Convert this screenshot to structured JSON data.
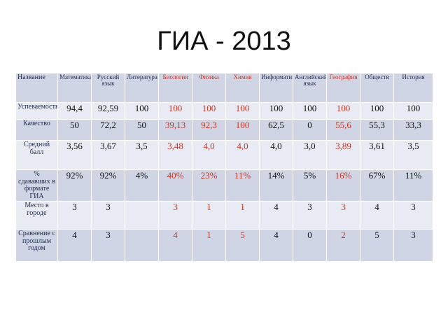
{
  "slide": {
    "title": "ГИА - 2013"
  },
  "table": {
    "corner_label": "Название",
    "subjects": [
      {
        "name": "Математика",
        "highlight": false
      },
      {
        "name": "Русский язык",
        "highlight": false
      },
      {
        "name": "Литература",
        "highlight": false
      },
      {
        "name": "Биология",
        "highlight": true
      },
      {
        "name": "Физика",
        "highlight": true
      },
      {
        "name": "Химия",
        "highlight": true
      },
      {
        "name": "Информатика",
        "highlight": false
      },
      {
        "name": "Английский язык",
        "highlight": false
      },
      {
        "name": "География",
        "highlight": true
      },
      {
        "name": "Обществ",
        "highlight": false
      },
      {
        "name": "История",
        "highlight": false
      }
    ],
    "rows": [
      {
        "label": "Успеваемость",
        "cells": [
          "94,4",
          "92,59",
          "100",
          "100",
          "100",
          "100",
          "100",
          "100",
          "100",
          "100",
          "100"
        ]
      },
      {
        "label": "Качество",
        "cells": [
          "50",
          "72,2",
          "50",
          "39,13",
          "92,3",
          "100",
          "62,5",
          "0",
          "55,6",
          "55,3",
          "33,3"
        ]
      },
      {
        "label": "Средний балл",
        "cells": [
          "3,56",
          "3,67",
          "3,5",
          "3,48",
          "4,0",
          "4,0",
          "4,0",
          "3,0",
          "3,89",
          "3,61",
          "3,5"
        ]
      },
      {
        "label": "% сдававших в формате ГИА",
        "cells": [
          "92%",
          "92%",
          "4%",
          "40%",
          "23%",
          "11%",
          "14%",
          "5%",
          "16%",
          "67%",
          "11%"
        ]
      },
      {
        "label": "Место в городе",
        "cells": [
          "3",
          "3",
          "",
          "3",
          "1",
          "1",
          "4",
          "3",
          "3",
          "4",
          "3"
        ]
      },
      {
        "label": "Сравнение с прошлым годом",
        "cells": [
          "4",
          "3",
          "",
          "4",
          "1",
          "5",
          "4",
          "0",
          "2",
          "5",
          "3"
        ]
      }
    ]
  },
  "colors": {
    "band_dark": "#cfd5e4",
    "band_light": "#e8ebf3",
    "highlight_red": "#c0392b"
  }
}
